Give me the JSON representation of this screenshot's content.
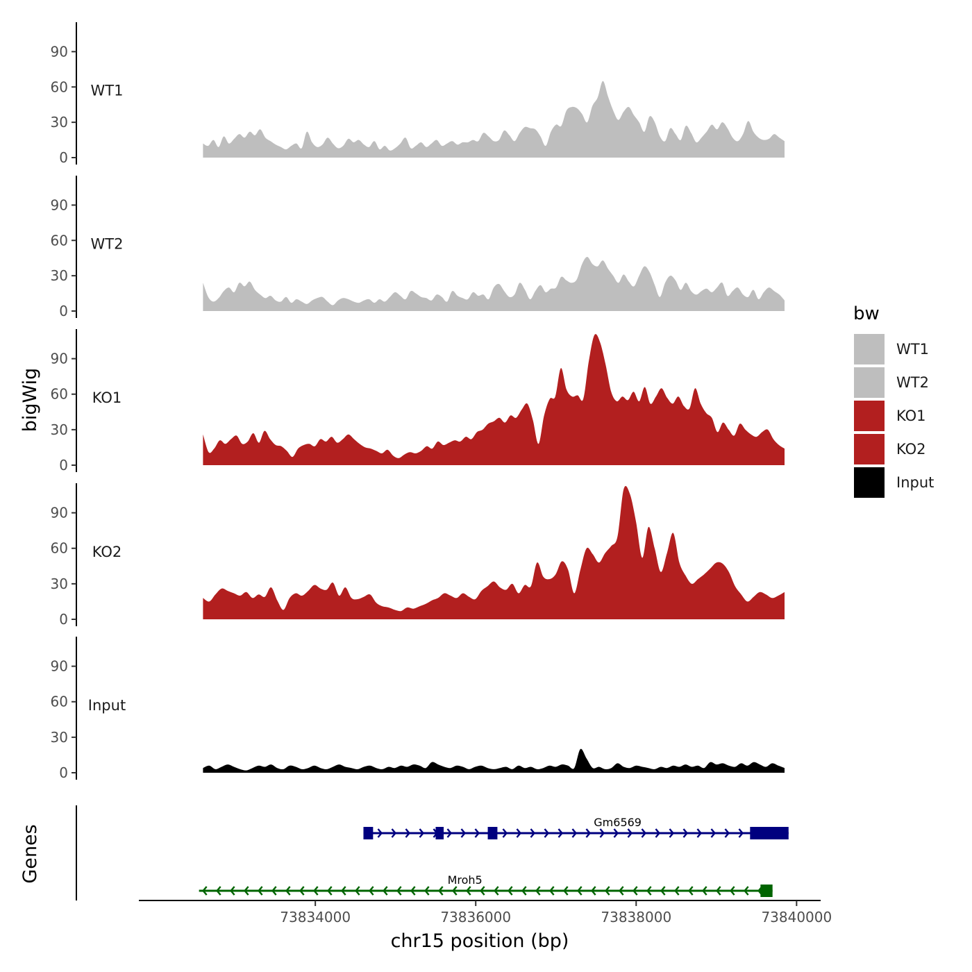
{
  "chart_data": {
    "type": "area",
    "chromosome": "chr15",
    "xlabel": "chr15 position (bp)",
    "ylabel_tracks": "bigWig",
    "ylabel_genes": "Genes",
    "xlim": [
      73831800,
      73840300
    ],
    "x_ticks": [
      73834000,
      73836000,
      73838000,
      73840000
    ],
    "x_tick_labels": [
      "73834000",
      "73836000",
      "73838000",
      "73840000"
    ],
    "ylim": [
      0,
      115
    ],
    "y_ticks": [
      0,
      30,
      60,
      90
    ],
    "y_tick_labels": [
      "0",
      "30",
      "60",
      "90"
    ],
    "x_range": [
      73832600,
      73839850
    ],
    "legend": {
      "title": "bw",
      "position": "right",
      "entries": [
        {
          "label": "WT1",
          "color": "#bebebe"
        },
        {
          "label": "WT2",
          "color": "#bebebe"
        },
        {
          "label": "KO1",
          "color": "#b21f1f"
        },
        {
          "label": "KO2",
          "color": "#b21f1f"
        },
        {
          "label": "Input",
          "color": "#000000"
        }
      ]
    },
    "series": [
      {
        "name": "WT1",
        "color": "#bebebe",
        "values": [
          12,
          10,
          15,
          9,
          18,
          12,
          16,
          20,
          17,
          22,
          19,
          24,
          17,
          14,
          11,
          9,
          7,
          10,
          12,
          8,
          22,
          13,
          9,
          11,
          17,
          12,
          8,
          10,
          16,
          13,
          15,
          11,
          9,
          14,
          7,
          10,
          6,
          8,
          12,
          17,
          8,
          10,
          13,
          9,
          12,
          15,
          10,
          12,
          14,
          11,
          13,
          13,
          15,
          14,
          21,
          18,
          14,
          15,
          23,
          19,
          14,
          21,
          26,
          25,
          24,
          18,
          10,
          22,
          28,
          27,
          40,
          43,
          42,
          37,
          30,
          44,
          51,
          65,
          52,
          40,
          32,
          39,
          43,
          36,
          30,
          22,
          35,
          30,
          18,
          14,
          25,
          20,
          15,
          27,
          21,
          13,
          17,
          22,
          28,
          24,
          30,
          25,
          17,
          14,
          20,
          31,
          22,
          17,
          15,
          16,
          20,
          17,
          14
        ]
      },
      {
        "name": "WT2",
        "color": "#bebebe",
        "values": [
          24,
          12,
          8,
          11,
          17,
          20,
          16,
          24,
          21,
          25,
          18,
          14,
          11,
          13,
          9,
          8,
          12,
          7,
          10,
          8,
          6,
          9,
          11,
          12,
          8,
          5,
          9,
          11,
          10,
          8,
          7,
          9,
          10,
          7,
          10,
          8,
          12,
          16,
          13,
          10,
          17,
          15,
          12,
          11,
          9,
          14,
          12,
          8,
          17,
          13,
          11,
          10,
          16,
          13,
          14,
          10,
          20,
          23,
          17,
          12,
          14,
          24,
          18,
          10,
          17,
          22,
          16,
          19,
          20,
          29,
          26,
          24,
          27,
          40,
          46,
          40,
          38,
          43,
          36,
          30,
          24,
          31,
          25,
          21,
          30,
          38,
          33,
          22,
          12,
          24,
          30,
          26,
          18,
          24,
          17,
          14,
          17,
          19,
          16,
          20,
          24,
          13,
          17,
          20,
          14,
          12,
          18,
          10,
          16,
          20,
          17,
          14,
          9
        ]
      },
      {
        "name": "KO1",
        "color": "#b21f1f",
        "values": [
          26,
          11,
          14,
          21,
          18,
          22,
          25,
          18,
          20,
          27,
          19,
          29,
          22,
          17,
          16,
          12,
          7,
          14,
          17,
          18,
          16,
          22,
          20,
          24,
          19,
          22,
          26,
          22,
          18,
          15,
          14,
          12,
          10,
          13,
          8,
          6,
          9,
          11,
          10,
          12,
          16,
          14,
          20,
          17,
          19,
          21,
          20,
          24,
          22,
          28,
          30,
          35,
          37,
          40,
          36,
          42,
          40,
          47,
          52,
          38,
          18,
          42,
          56,
          58,
          82,
          64,
          58,
          59,
          56,
          88,
          110,
          104,
          85,
          62,
          54,
          58,
          55,
          62,
          54,
          66,
          52,
          58,
          65,
          57,
          52,
          58,
          50,
          48,
          65,
          52,
          44,
          40,
          28,
          36,
          30,
          25,
          35,
          30,
          26,
          24,
          28,
          30,
          22,
          17,
          14
        ]
      },
      {
        "name": "KO2",
        "color": "#b21f1f",
        "values": [
          18,
          15,
          21,
          26,
          24,
          22,
          20,
          23,
          18,
          21,
          19,
          27,
          16,
          8,
          18,
          22,
          20,
          24,
          29,
          26,
          25,
          31,
          20,
          27,
          18,
          17,
          19,
          21,
          14,
          11,
          10,
          8,
          7,
          10,
          9,
          11,
          13,
          16,
          18,
          22,
          20,
          18,
          22,
          19,
          17,
          24,
          28,
          32,
          27,
          25,
          30,
          22,
          29,
          28,
          48,
          36,
          34,
          38,
          49,
          42,
          22,
          42,
          60,
          55,
          48,
          56,
          62,
          70,
          110,
          106,
          82,
          52,
          78,
          60,
          40,
          56,
          73,
          48,
          37,
          30,
          34,
          38,
          43,
          48,
          47,
          40,
          28,
          21,
          15,
          19,
          23,
          21,
          18,
          20,
          23
        ]
      },
      {
        "name": "Input",
        "color": "#000000",
        "values": [
          4,
          6,
          3,
          5,
          7,
          5,
          3,
          2,
          4,
          6,
          5,
          7,
          4,
          3,
          6,
          5,
          3,
          4,
          6,
          4,
          3,
          5,
          7,
          5,
          4,
          3,
          5,
          6,
          4,
          3,
          5,
          4,
          6,
          5,
          7,
          6,
          4,
          9,
          7,
          5,
          4,
          6,
          5,
          3,
          5,
          6,
          4,
          3,
          4,
          5,
          3,
          6,
          4,
          5,
          3,
          4,
          6,
          5,
          7,
          6,
          4,
          20,
          12,
          4,
          5,
          3,
          4,
          8,
          5,
          4,
          6,
          5,
          4,
          3,
          5,
          4,
          6,
          5,
          7,
          5,
          6,
          4,
          9,
          7,
          8,
          6,
          5,
          8,
          6,
          9,
          7,
          5,
          8,
          6,
          4
        ]
      }
    ],
    "genes": [
      {
        "name": "Gm6569",
        "strand": "+",
        "color": "#00007f",
        "start": 73834600,
        "end": 73839900,
        "exons": [
          [
            73834600,
            73834720
          ],
          [
            73835500,
            73835600
          ],
          [
            73836150,
            73836270
          ],
          [
            73839420,
            73839900
          ]
        ]
      },
      {
        "name": "Mroh5",
        "strand": "-",
        "color": "#006400",
        "start": 73832550,
        "end": 73839700,
        "exons": [
          [
            73839550,
            73839700
          ]
        ]
      }
    ]
  }
}
